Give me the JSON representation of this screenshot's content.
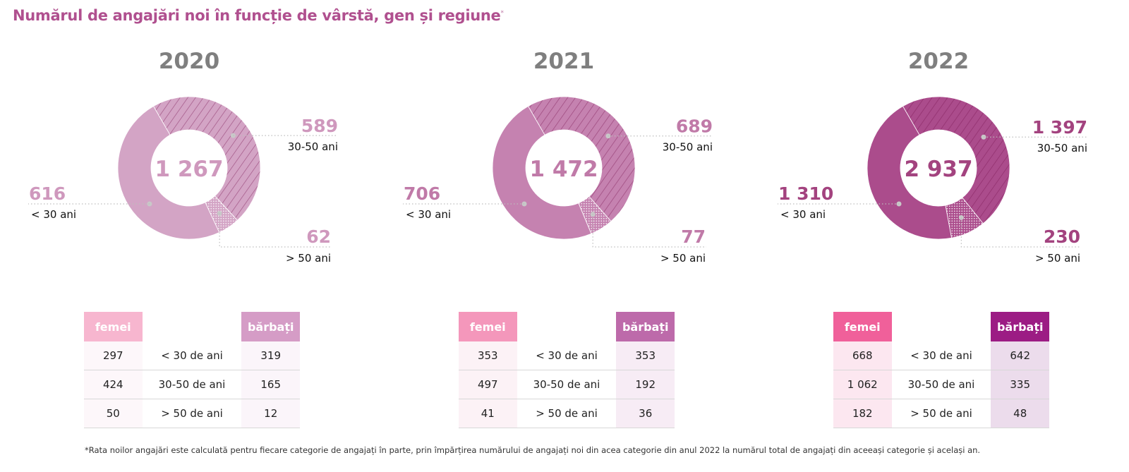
{
  "title": "Numărul de angajări noi în funcție de vârstă, gen și regiune",
  "title_mark": "*",
  "chart_data": [
    {
      "type": "pie",
      "year": "2020",
      "total": "1 267",
      "slices": [
        {
          "label": "< 30 ani",
          "value": 616,
          "value_text": "616"
        },
        {
          "label": "30-50 ani",
          "value": 589,
          "value_text": "589"
        },
        {
          "label": "> 50 ani",
          "value": 62,
          "value_text": "62"
        }
      ],
      "colors": {
        "main": "#d3a4c5",
        "value": "#cf98bd"
      },
      "table": {
        "header_women": "femei",
        "header_men": "bărbați",
        "color_women": "#f7b6cf",
        "color_men": "#d59cc6",
        "bg_women": "#fdf7fa",
        "bg_men": "#fbf5fa",
        "rows": [
          {
            "women": "297",
            "label": "< 30 de ani",
            "men": "319"
          },
          {
            "women": "424",
            "label": "30-50 de ani",
            "men": "165"
          },
          {
            "women": "50",
            "label": "> 50 de ani",
            "men": "12"
          }
        ]
      }
    },
    {
      "type": "pie",
      "year": "2021",
      "total": "1 472",
      "slices": [
        {
          "label": "< 30 ani",
          "value": 706,
          "value_text": "706"
        },
        {
          "label": "30-50 ani",
          "value": 689,
          "value_text": "689"
        },
        {
          "label": "> 50 ani",
          "value": 77,
          "value_text": "77"
        }
      ],
      "colors": {
        "main": "#c582b0",
        "value": "#c07aa8"
      },
      "table": {
        "header_women": "femei",
        "header_men": "bărbați",
        "color_women": "#f497bb",
        "color_men": "#bd6aaa",
        "bg_women": "#fcf2f6",
        "bg_men": "#f7ecf5",
        "rows": [
          {
            "women": "353",
            "label": "< 30 de ani",
            "men": "353"
          },
          {
            "women": "497",
            "label": "30-50 de ani",
            "men": "192"
          },
          {
            "women": "41",
            "label": "> 50 de ani",
            "men": "36"
          }
        ]
      }
    },
    {
      "type": "pie",
      "year": "2022",
      "total": "2 937",
      "slices": [
        {
          "label": "< 30 ani",
          "value": 1310,
          "value_text": "1 310"
        },
        {
          "label": "30-50 ani",
          "value": 1397,
          "value_text": "1 397"
        },
        {
          "label": "> 50 ani",
          "value": 230,
          "value_text": "230"
        }
      ],
      "colors": {
        "main": "#ab4c8c",
        "value": "#a3437f"
      },
      "table": {
        "header_women": "femei",
        "header_men": "bărbați",
        "color_women": "#f0609a",
        "color_men": "#9c1c84",
        "bg_women": "#fce7f0",
        "bg_men": "#ecdcec",
        "rows": [
          {
            "women": "668",
            "label": "< 30 de ani",
            "men": "642"
          },
          {
            "women": "1 062",
            "label": "30-50 de ani",
            "men": "335"
          },
          {
            "women": "182",
            "label": "> 50 de ani",
            "men": "48"
          }
        ]
      }
    }
  ],
  "footnote": "*Rata noilor angajări este calculată pentru fiecare categorie de angajați în parte, prin împărțirea numărului de angajați noi din acea categorie din anul 2022 la numărul total de angajați din aceeași categorie și același an."
}
